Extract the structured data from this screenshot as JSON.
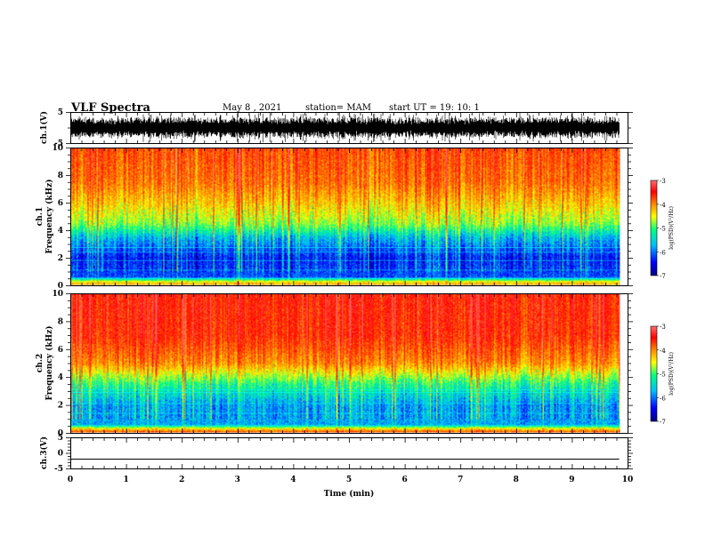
{
  "header": {
    "title": "VLF Spectra",
    "date": "May 8 , 2021",
    "station": "station= MAM",
    "start": "start UT = 19: 10: 1"
  },
  "colors": {
    "colormap": [
      "#00007f",
      "#0000ff",
      "#00bfff",
      "#00ff80",
      "#ffff00",
      "#ff7f00",
      "#ff0000",
      "#ff6060"
    ],
    "trace": "#000000",
    "line": "#00ffff"
  },
  "chart_data": [
    {
      "type": "line",
      "panel": "ch1-waveform",
      "ylabel": "ch.1(V)",
      "ylim": [
        -5,
        5
      ],
      "y_ticks": [
        "5",
        "-5"
      ],
      "description_level": "dense waveform, amplitude roughly ±3 V"
    },
    {
      "type": "heatmap",
      "panel": "ch1-spectrogram",
      "ylabel_lines": [
        "ch.1",
        "Frequency (kHz)"
      ],
      "ylim": [
        0,
        10
      ],
      "y_ticks": [
        "0",
        "2",
        "4",
        "6",
        "8",
        "10"
      ],
      "xlim": [
        0,
        10
      ],
      "data_extent_min": 9.85,
      "colorbar": {
        "label": "log(PSD)(V²/Hz)",
        "range": [
          -7,
          -3
        ],
        "ticks": [
          "-3",
          "-4",
          "-5",
          "-6",
          "-7"
        ]
      },
      "profile": [
        {
          "f": 0.0,
          "v": -4.2
        },
        {
          "f": 0.3,
          "v": -4.8
        },
        {
          "f": 0.6,
          "v": -6.2
        },
        {
          "f": 2.0,
          "v": -6.4
        },
        {
          "f": 3.5,
          "v": -5.8
        },
        {
          "f": 4.5,
          "v": -5.0
        },
        {
          "f": 6.0,
          "v": -4.5
        },
        {
          "f": 7.5,
          "v": -4.1
        },
        {
          "f": 10.0,
          "v": -3.9
        }
      ]
    },
    {
      "type": "heatmap",
      "panel": "ch2-spectrogram",
      "ylabel_lines": [
        "ch.2",
        "Frequency (kHz)"
      ],
      "ylim": [
        0,
        10
      ],
      "y_ticks": [
        "0",
        "2",
        "4",
        "6",
        "8",
        "10"
      ],
      "xlim": [
        0,
        10
      ],
      "data_extent_min": 9.85,
      "colorbar": {
        "label": "log(PSD)(V²/Hz)",
        "range": [
          -7,
          -3
        ],
        "ticks": [
          "-3",
          "-4",
          "-5",
          "-6",
          "-7"
        ]
      },
      "profile": [
        {
          "f": 0.0,
          "v": -3.8
        },
        {
          "f": 0.3,
          "v": -4.6
        },
        {
          "f": 0.6,
          "v": -5.9
        },
        {
          "f": 2.0,
          "v": -5.9
        },
        {
          "f": 3.5,
          "v": -5.3
        },
        {
          "f": 5.0,
          "v": -4.2
        },
        {
          "f": 7.0,
          "v": -3.7
        },
        {
          "f": 10.0,
          "v": -3.6
        }
      ]
    },
    {
      "type": "line",
      "panel": "ch3-waveform",
      "ylabel": "ch.3(V)",
      "ylim": [
        -5,
        5
      ],
      "y_ticks": [
        "5",
        "0",
        "-5"
      ],
      "values_constant": -2.0
    }
  ],
  "xaxis": {
    "label": "Time (min)",
    "range": [
      0,
      10
    ],
    "ticks": [
      "0",
      "1",
      "2",
      "3",
      "4",
      "5",
      "6",
      "7",
      "8",
      "9",
      "10"
    ]
  }
}
